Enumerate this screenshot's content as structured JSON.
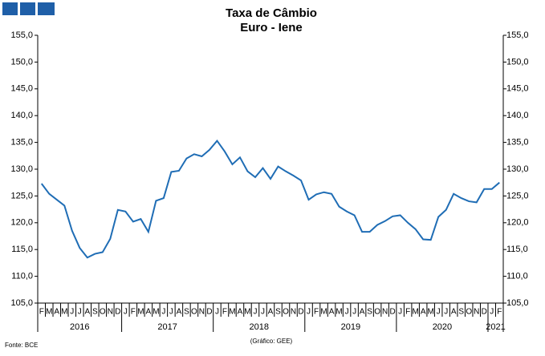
{
  "chart_data": {
    "type": "line",
    "title": "Taxa de Câmbio",
    "subtitle": "Euro - Iene",
    "source": "Fonte: BCE",
    "credit": "(Gráfico: GEE)",
    "categories": [
      "F",
      "M",
      "A",
      "M",
      "J",
      "J",
      "A",
      "S",
      "O",
      "N",
      "D",
      "J",
      "F",
      "M",
      "A",
      "M",
      "J",
      "J",
      "A",
      "S",
      "O",
      "N",
      "D",
      "J",
      "F",
      "M",
      "A",
      "M",
      "J",
      "J",
      "A",
      "S",
      "O",
      "N",
      "D",
      "J",
      "F",
      "M",
      "A",
      "M",
      "J",
      "J",
      "A",
      "S",
      "O",
      "N",
      "D",
      "J",
      "F",
      "M",
      "A",
      "M",
      "J",
      "J",
      "A",
      "S",
      "O",
      "N",
      "D",
      "J",
      "F"
    ],
    "years": [
      "2016",
      "2017",
      "2018",
      "2019",
      "2020",
      "2021"
    ],
    "values": [
      127.3,
      125.4,
      124.3,
      123.2,
      118.5,
      115.3,
      113.5,
      114.2,
      114.5,
      117.0,
      122.4,
      122.1,
      120.2,
      120.7,
      118.3,
      124.1,
      124.6,
      129.5,
      129.7,
      132.0,
      132.8,
      132.4,
      133.6,
      135.3,
      133.3,
      130.9,
      132.2,
      129.6,
      128.5,
      130.2,
      128.2,
      130.5,
      129.6,
      128.8,
      127.9,
      124.3,
      125.3,
      125.7,
      125.4,
      123.0,
      122.1,
      121.4,
      118.3,
      118.3,
      119.6,
      120.3,
      121.2,
      121.4,
      120.0,
      118.8,
      116.9,
      116.8,
      121.1,
      122.4,
      125.4,
      124.6,
      124.0,
      123.8,
      126.3,
      126.3,
      127.5
    ],
    "color": "#1f6db5",
    "ylim": [
      105,
      155
    ],
    "yticks": [
      {
        "value": 105,
        "label": "105,0"
      },
      {
        "value": 110,
        "label": "110,0"
      },
      {
        "value": 115,
        "label": "115,0"
      },
      {
        "value": 120,
        "label": "120,0"
      },
      {
        "value": 125,
        "label": "125,0"
      },
      {
        "value": 130,
        "label": "130,0"
      },
      {
        "value": 135,
        "label": "135,0"
      },
      {
        "value": 140,
        "label": "140,0"
      },
      {
        "value": 145,
        "label": "145,0"
      },
      {
        "value": 150,
        "label": "150,0"
      },
      {
        "value": 155,
        "label": "155,0"
      }
    ],
    "y2lim": [
      105,
      155
    ],
    "y2ticks": [
      {
        "value": 105,
        "label": "105,0"
      },
      {
        "value": 110,
        "label": "110,0"
      },
      {
        "value": 115,
        "label": "115,0"
      },
      {
        "value": 120,
        "label": "120,0"
      },
      {
        "value": 125,
        "label": "125,0"
      },
      {
        "value": 130,
        "label": "130,0"
      },
      {
        "value": 135,
        "label": "135,0"
      },
      {
        "value": 140,
        "label": "140,0"
      },
      {
        "value": 145,
        "label": "145,0"
      },
      {
        "value": 150,
        "label": "150,0"
      },
      {
        "value": 155,
        "label": "155,0"
      }
    ]
  }
}
